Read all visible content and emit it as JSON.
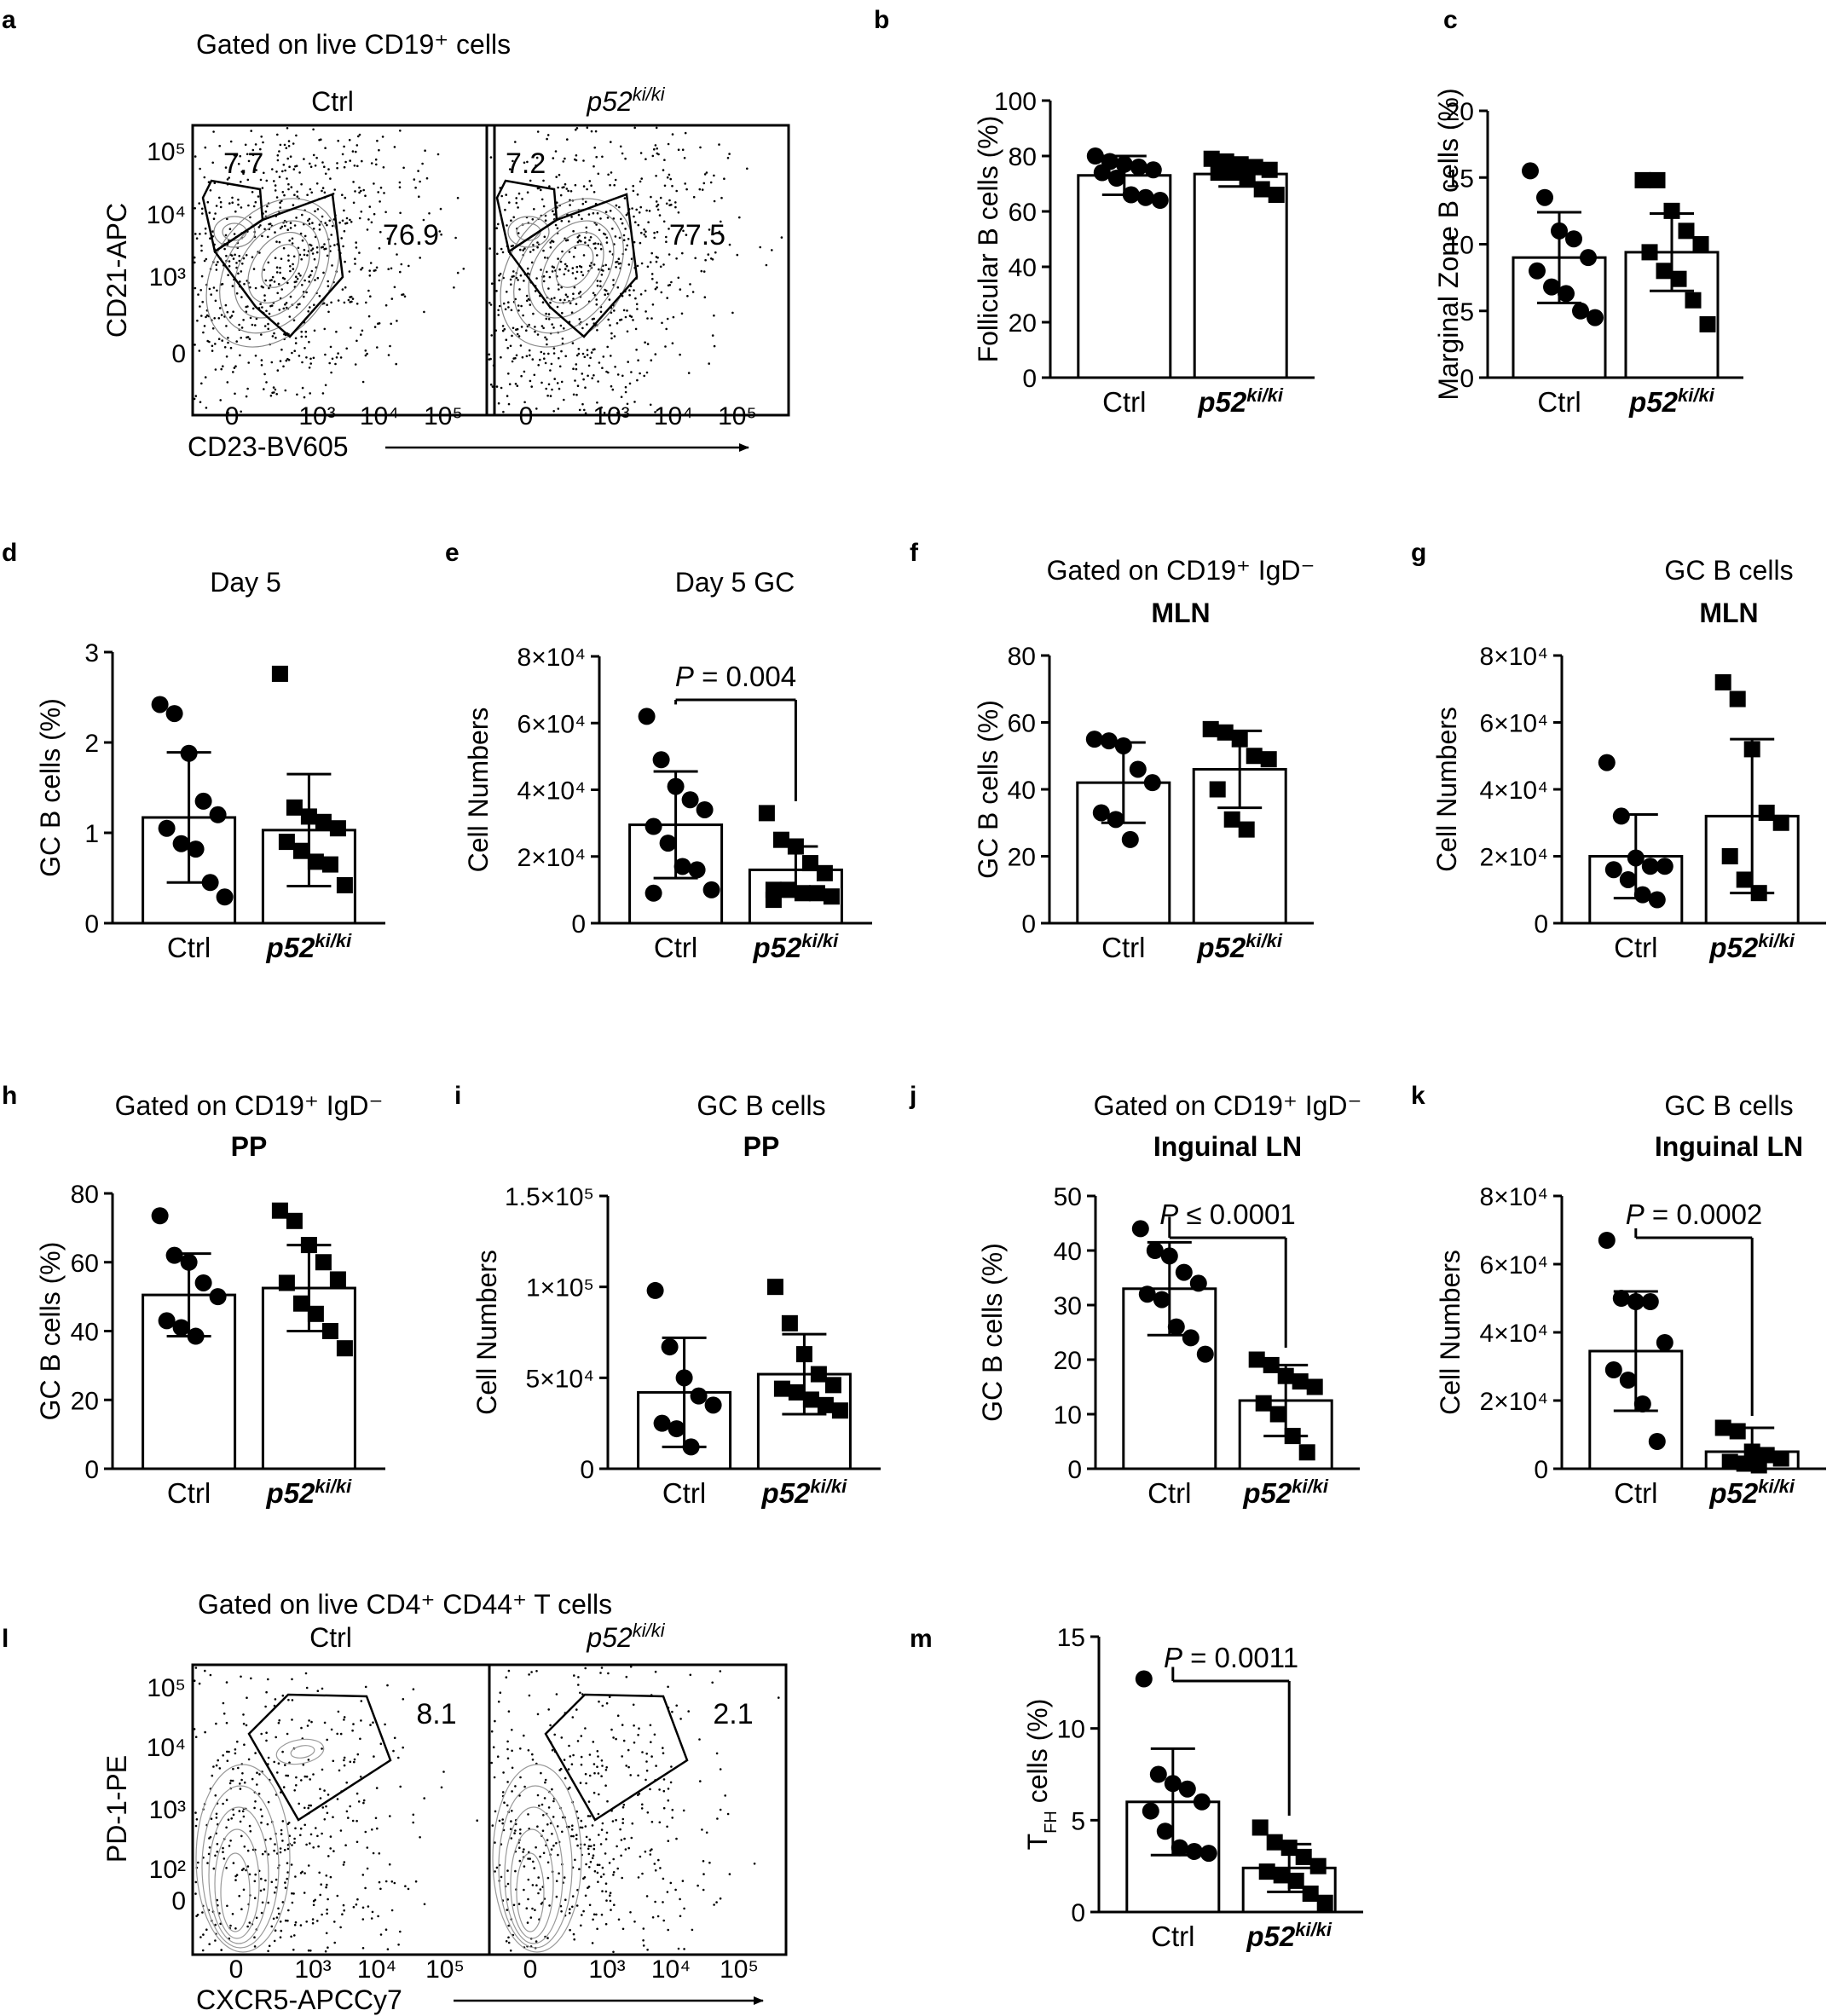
{
  "figure": {
    "panels": [
      {
        "letter": "a",
        "title": "Gated on live CD19⁺ cells"
      },
      {
        "letter": "b"
      },
      {
        "letter": "c"
      },
      {
        "letter": "d"
      },
      {
        "letter": "e"
      },
      {
        "letter": "f"
      },
      {
        "letter": "g"
      },
      {
        "letter": "h"
      },
      {
        "letter": "i"
      },
      {
        "letter": "j"
      },
      {
        "letter": "k"
      },
      {
        "letter": "l",
        "title": "Gated on live  CD4⁺ CD44⁺ T cells"
      },
      {
        "letter": "m"
      }
    ]
  },
  "flow_a": {
    "title": "Gated on live CD19⁺ cells",
    "samples": [
      {
        "name": "Ctrl"
      },
      {
        "name": "p52ki/ki"
      }
    ],
    "gates": [
      {
        "mz": "7.7",
        "fo": "76.9"
      },
      {
        "mz": "7.2",
        "fo": "77.5"
      }
    ],
    "ylabel": "CD21-APC",
    "xlabel": "CD23-BV605",
    "yticks": [
      "10⁵",
      "10⁴",
      "10³",
      "0"
    ],
    "xticks": [
      "0",
      "10³",
      "10⁴",
      "10⁵"
    ]
  },
  "flow_l": {
    "title": "Gated on live  CD4⁺ CD44⁺ T cells",
    "samples": [
      {
        "name": "Ctrl"
      },
      {
        "name": "p52ki/ki"
      }
    ],
    "gates": [
      {
        "tfh": "8.1"
      },
      {
        "tfh": "2.1"
      }
    ],
    "ylabel": "PD-1-PE",
    "xlabel": "CXCR5-APCCy7",
    "yticks": [
      "10⁵",
      "10⁴",
      "10³",
      "10²",
      "0"
    ],
    "xticks": [
      "0",
      "10³",
      "10⁴",
      "10⁵"
    ]
  },
  "chart_data": [
    {
      "panel": "b",
      "type": "bar",
      "title": "",
      "subtitle": "",
      "ylabel": "Follicular B cells (%)",
      "ylim": [
        0,
        100
      ],
      "ytick_labels": [
        "0",
        "20",
        "40",
        "60",
        "80",
        "100"
      ],
      "categories": [
        "Ctrl",
        "p52ki/ki"
      ],
      "means": [
        73,
        73.5
      ],
      "sd": [
        7,
        4.5
      ],
      "points": [
        [
          80,
          78,
          77,
          76,
          75,
          74,
          72,
          66,
          65,
          64
        ],
        [
          79,
          78,
          77,
          76,
          75,
          74,
          74,
          72,
          68,
          66
        ]
      ],
      "pvalue": null
    },
    {
      "panel": "c",
      "type": "bar",
      "title": "",
      "subtitle": "",
      "ylabel": "Marginal Zone B cells (%)",
      "ylim": [
        0,
        20
      ],
      "ytick_labels": [
        "0",
        "5",
        "10",
        "15",
        "20"
      ],
      "categories": [
        "Ctrl",
        "p52ki/ki"
      ],
      "means": [
        9,
        9.4
      ],
      "sd": [
        3.4,
        2.9
      ],
      "points": [
        [
          15.5,
          13.5,
          11,
          10.4,
          9,
          8,
          6.8,
          6.3,
          5,
          4.5
        ],
        [
          14.8,
          14.8,
          12.5,
          11,
          10,
          9.4,
          8,
          7.4,
          5.8,
          4
        ]
      ],
      "pvalue": null
    },
    {
      "panel": "d",
      "type": "bar",
      "title": "Day 5",
      "subtitle": "",
      "ylabel": "GC B cells (%)",
      "ylim": [
        0,
        3
      ],
      "ytick_labels": [
        "0",
        "1",
        "2",
        "3"
      ],
      "categories": [
        "Ctrl",
        "p52ki/ki"
      ],
      "means": [
        1.17,
        1.03
      ],
      "sd": [
        0.72,
        0.62
      ],
      "points": [
        [
          2.42,
          2.32,
          1.88,
          1.35,
          1.2,
          1.05,
          0.88,
          0.82,
          0.45,
          0.29
        ],
        [
          2.76,
          1.28,
          1.18,
          1.12,
          1.05,
          0.9,
          0.8,
          0.68,
          0.65,
          0.42
        ]
      ],
      "pvalue": null
    },
    {
      "panel": "e",
      "type": "bar",
      "title": "Day 5 GC",
      "subtitle": "",
      "ylabel": "Cell Numbers",
      "ylim": [
        0,
        80000
      ],
      "ytick_labels": [
        "0",
        "2×10⁴",
        "4×10⁴",
        "6×10⁴",
        "8×10⁴"
      ],
      "categories": [
        "Ctrl",
        "p52ki/ki"
      ],
      "means": [
        29500,
        16000
      ],
      "sd": [
        16000,
        7000
      ],
      "points": [
        [
          62000,
          49000,
          41000,
          37000,
          34000,
          29000,
          24000,
          17000,
          16000,
          10000,
          9000
        ],
        [
          33000,
          25000,
          23000,
          18000,
          15000,
          10000,
          10000,
          9000,
          9000,
          8000,
          7000
        ]
      ],
      "pvalue": "P = 0.004"
    },
    {
      "panel": "f",
      "type": "bar",
      "title": "Gated on CD19⁺ IgD⁻",
      "subtitle": "MLN",
      "ylabel": "GC B cells (%)",
      "ylim": [
        0,
        80
      ],
      "ytick_labels": [
        "0",
        "20",
        "40",
        "60",
        "80"
      ],
      "categories": [
        "Ctrl",
        "p52ki/ki"
      ],
      "means": [
        42,
        46
      ],
      "sd": [
        12,
        11.5
      ],
      "points": [
        [
          55,
          54.5,
          53,
          46,
          42,
          33,
          31,
          25
        ],
        [
          58,
          57,
          55,
          50,
          49,
          40,
          31,
          28
        ]
      ],
      "pvalue": null
    },
    {
      "panel": "g",
      "type": "bar",
      "title": "GC B cells",
      "subtitle": "MLN",
      "ylabel": "Cell Numbers",
      "ylim": [
        0,
        80000
      ],
      "ytick_labels": [
        "0",
        "2×10⁴",
        "4×10⁴",
        "6×10⁴",
        "8×10⁴"
      ],
      "categories": [
        "Ctrl",
        "p52ki/ki"
      ],
      "means": [
        20000,
        32000
      ],
      "sd": [
        12500,
        23000
      ],
      "points": [
        [
          48000,
          32000,
          19500,
          17000,
          17000,
          16000,
          13000,
          8500,
          7000
        ],
        [
          72000,
          67000,
          52000,
          33000,
          30000,
          20000,
          13000,
          9000
        ]
      ],
      "pvalue": null
    },
    {
      "panel": "h",
      "type": "bar",
      "title": "Gated on CD19⁺ IgD⁻",
      "subtitle": "PP",
      "ylabel": "GC B cells (%)",
      "ylim": [
        0,
        80
      ],
      "ytick_labels": [
        "0",
        "20",
        "40",
        "60",
        "80"
      ],
      "categories": [
        "Ctrl",
        "p52ki/ki"
      ],
      "means": [
        50.5,
        52.5
      ],
      "sd": [
        12,
        12.5
      ],
      "points": [
        [
          73.5,
          62,
          60,
          54,
          50,
          43,
          41,
          38.5
        ],
        [
          75,
          72,
          65,
          60,
          55,
          54,
          48,
          45,
          40,
          35
        ]
      ],
      "pvalue": null
    },
    {
      "panel": "i",
      "type": "bar",
      "title": "GC B cells",
      "subtitle": "PP",
      "ylabel": "Cell Numbers",
      "ylim": [
        0,
        150000
      ],
      "ytick_labels": [
        "0",
        "5×10⁴",
        "1×10⁵",
        "1.5×10⁵"
      ],
      "categories": [
        "Ctrl",
        "p52ki/ki"
      ],
      "means": [
        42000,
        52000
      ],
      "sd": [
        30000,
        22000
      ],
      "points": [
        [
          98000,
          67000,
          50000,
          40000,
          35000,
          25000,
          22000,
          12000
        ],
        [
          100000,
          80000,
          63000,
          52000,
          46000,
          44000,
          42000,
          38000,
          35000,
          32000
        ]
      ],
      "pvalue": null
    },
    {
      "panel": "j",
      "type": "bar",
      "title": "Gated on CD19⁺ IgD⁻",
      "subtitle": "Inguinal LN",
      "ylabel": "GC B cells (%)",
      "ylim": [
        0,
        50
      ],
      "ytick_labels": [
        "0",
        "10",
        "20",
        "30",
        "40",
        "50"
      ],
      "categories": [
        "Ctrl",
        "p52ki/ki"
      ],
      "means": [
        33,
        12.5
      ],
      "sd": [
        8.5,
        6.5
      ],
      "points": [
        [
          44,
          40,
          39,
          36,
          34,
          32,
          31,
          26,
          24,
          21
        ],
        [
          20,
          19,
          17,
          16,
          15,
          12,
          10,
          6,
          3
        ]
      ],
      "pvalue": "P ≤ 0.0001"
    },
    {
      "panel": "k",
      "type": "bar",
      "title": "GC B cells",
      "subtitle": "Inguinal LN",
      "ylabel": "Cell Numbers",
      "ylim": [
        0,
        80000
      ],
      "ytick_labels": [
        "0",
        "2×10⁴",
        "4×10⁴",
        "6×10⁴",
        "8×10⁴"
      ],
      "categories": [
        "Ctrl",
        "p52ki/ki"
      ],
      "means": [
        34500,
        5000
      ],
      "sd": [
        17500,
        7000
      ],
      "points": [
        [
          67000,
          50000,
          49000,
          49000,
          37000,
          29000,
          26000,
          19000,
          8000
        ],
        [
          12000,
          11000,
          5000,
          4000,
          3000,
          2000,
          1500,
          1000
        ]
      ],
      "pvalue": "P = 0.0002"
    },
    {
      "panel": "m",
      "type": "bar",
      "title": "",
      "subtitle": "",
      "ylabel": "TFH cells (%)",
      "ylim": [
        0,
        15
      ],
      "ytick_labels": [
        "0",
        "5",
        "10",
        "15"
      ],
      "categories": [
        "Ctrl",
        "p52ki/ki"
      ],
      "means": [
        6,
        2.4
      ],
      "sd": [
        2.9,
        1.3
      ],
      "points": [
        [
          12.7,
          7.5,
          7,
          6.7,
          6,
          5.5,
          4.4,
          3.5,
          3.3,
          3.2
        ],
        [
          4.6,
          3.8,
          3.5,
          3,
          2.5,
          2.2,
          2,
          1.7,
          1,
          0.5
        ]
      ],
      "pvalue": "P = 0.0011"
    }
  ]
}
